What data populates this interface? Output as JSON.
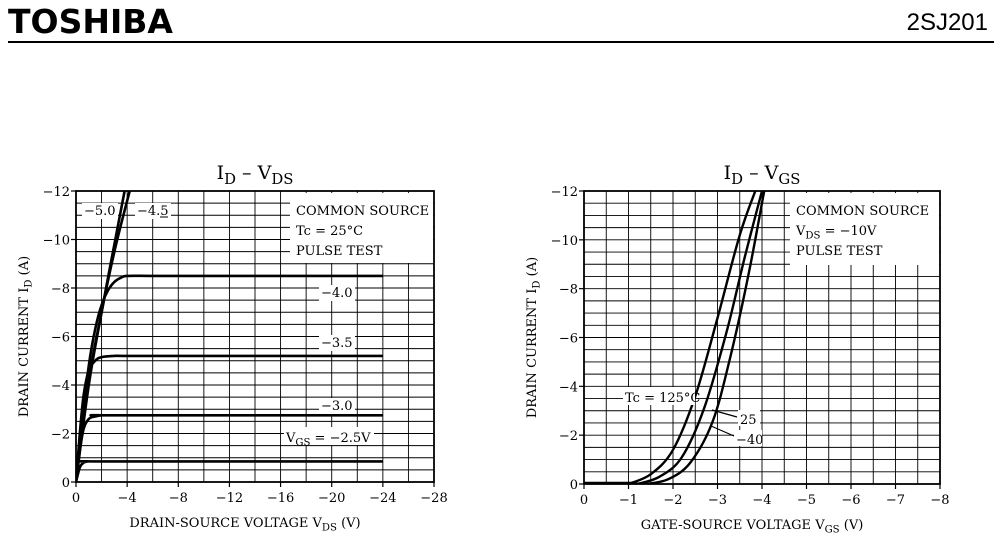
{
  "header": {
    "brand": "TOSHIBA",
    "part_number": "2SJ201"
  },
  "chart_data": [
    {
      "type": "line",
      "title": "ID – VDS",
      "title_main_1": "I",
      "title_sub_1": "D",
      "title_dash": "–",
      "title_main_2": "V",
      "title_sub_2": "DS",
      "xlabel": "DRAIN-SOURCE VOLTAGE V DS (V)",
      "xlabel_text": "DRAIN-SOURCE VOLTAGE",
      "xlabel_sym": "V",
      "xlabel_sub": "DS",
      "xlabel_unit": "(V)",
      "ylabel": "DRAIN CURRENT I D (A)",
      "ylabel_text": "DRAIN CURRENT",
      "ylabel_sym": "I",
      "ylabel_sub": "D",
      "ylabel_unit": "(A)",
      "xlim": [
        0,
        -28
      ],
      "ylim": [
        0,
        -12
      ],
      "x_ticks": [
        0,
        -4,
        -8,
        -12,
        -16,
        -20,
        -24,
        -28
      ],
      "x_tick_labels": [
        "0",
        "−4",
        "−8",
        "−12",
        "−16",
        "−20",
        "−24",
        "−28"
      ],
      "y_ticks": [
        0,
        -2,
        -4,
        -6,
        -8,
        -10,
        -12
      ],
      "y_tick_labels": [
        "0",
        "−2",
        "−4",
        "−6",
        "−8",
        "−10",
        "−12"
      ],
      "grid": true,
      "info_box": [
        "COMMON SOURCE",
        "Tc = 25°C",
        "PULSE TEST"
      ],
      "series": [
        {
          "name": "−5.0",
          "x": [
            0,
            -1,
            -2,
            -3,
            -4.2
          ],
          "y": [
            0,
            -4.2,
            -7.0,
            -9.5,
            -12
          ]
        },
        {
          "name": "−4.5",
          "x": [
            0,
            -1,
            -2,
            -3,
            -3.8
          ],
          "y": [
            0,
            -4.0,
            -7.0,
            -9.8,
            -12
          ]
        },
        {
          "name": "−4.0",
          "x": [
            0,
            -0.5,
            -1,
            -1.5,
            -2,
            -2.5,
            -3,
            -3.5,
            -4,
            -6,
            -10,
            -16,
            -24
          ],
          "y": [
            0,
            -2.6,
            -4.8,
            -6.3,
            -7.3,
            -7.9,
            -8.25,
            -8.42,
            -8.5,
            -8.5,
            -8.5,
            -8.5,
            -8.5
          ]
        },
        {
          "name": "−3.5",
          "x": [
            0,
            -0.3,
            -0.6,
            -1,
            -1.5,
            -2,
            -3,
            -4,
            -10,
            -24
          ],
          "y": [
            0,
            -2.0,
            -3.6,
            -4.6,
            -5.0,
            -5.15,
            -5.2,
            -5.2,
            -5.2,
            -5.2
          ]
        },
        {
          "name": "−3.0",
          "x": [
            0,
            -0.3,
            -0.6,
            -1,
            -1.5,
            -2,
            -3,
            -24
          ],
          "y": [
            0,
            -1.3,
            -2.2,
            -2.6,
            -2.7,
            -2.75,
            -2.75,
            -2.75
          ]
        },
        {
          "name": "VGS = −2.5V",
          "x": [
            0,
            -0.3,
            -0.6,
            -1,
            -2,
            -24
          ],
          "y": [
            0,
            -0.6,
            -0.8,
            -0.85,
            -0.85,
            -0.85
          ]
        }
      ],
      "curve_labels": [
        {
          "key": "v50",
          "text": "−5.0"
        },
        {
          "key": "v45",
          "text": "−4.5"
        },
        {
          "key": "v40",
          "text": "−4.0"
        },
        {
          "key": "v35",
          "text": "−3.5"
        },
        {
          "key": "v30",
          "text": "−3.0"
        }
      ],
      "vgs_label": {
        "main": "V",
        "sub": "GS",
        "rest": " = −2.5V"
      }
    },
    {
      "type": "line",
      "title": "ID – VGS",
      "title_main_1": "I",
      "title_sub_1": "D",
      "title_dash": "–",
      "title_main_2": "V",
      "title_sub_2": "GS",
      "xlabel": "GATE-SOURCE VOLTAGE V GS (V)",
      "xlabel_text": "GATE-SOURCE VOLTAGE",
      "xlabel_sym": "V",
      "xlabel_sub": "GS",
      "xlabel_unit": "(V)",
      "ylabel": "DRAIN CURRENT I D (A)",
      "ylabel_text": "DRAIN CURRENT",
      "ylabel_sym": "I",
      "ylabel_sub": "D",
      "ylabel_unit": "(A)",
      "xlim": [
        0,
        -8
      ],
      "ylim": [
        0,
        -12
      ],
      "x_ticks": [
        0,
        -1,
        -2,
        -3,
        -4,
        -5,
        -6,
        -7,
        -8
      ],
      "x_tick_labels": [
        "0",
        "−1",
        "−2",
        "−3",
        "−4",
        "−5",
        "−6",
        "−7",
        "−8"
      ],
      "y_ticks": [
        0,
        -2,
        -4,
        -6,
        -8,
        -10,
        -12
      ],
      "y_tick_labels": [
        "0",
        "−2",
        "−4",
        "−6",
        "−8",
        "−10",
        "−12"
      ],
      "grid": true,
      "info_box_parts": {
        "line1": "COMMON SOURCE",
        "line2_main": "V",
        "line2_sub": "DS",
        "line2_rest": " = −10V",
        "line3": "PULSE TEST"
      },
      "series": [
        {
          "name": "Tc = 125°C",
          "x": [
            -1.0,
            -1.5,
            -2.0,
            -2.5,
            -3.0,
            -3.5,
            -3.85
          ],
          "y": [
            0,
            -0.4,
            -1.4,
            -3.6,
            -6.8,
            -10.2,
            -12
          ]
        },
        {
          "name": "25",
          "x": [
            -1.2,
            -1.7,
            -2.2,
            -2.7,
            -3.2,
            -3.6,
            -4.0
          ],
          "y": [
            0,
            -0.3,
            -1.1,
            -3.1,
            -6.2,
            -9.2,
            -12
          ]
        },
        {
          "name": "−40",
          "x": [
            -1.4,
            -1.9,
            -2.4,
            -2.9,
            -3.3,
            -3.7,
            -4.05
          ],
          "y": [
            0,
            -0.2,
            -0.9,
            -2.6,
            -5.3,
            -8.6,
            -12
          ]
        }
      ],
      "curve_labels": [
        {
          "key": "t125",
          "text": "Tc = 125°C"
        },
        {
          "key": "t25",
          "text": "25"
        },
        {
          "key": "tm40",
          "text": "−40"
        }
      ]
    }
  ]
}
